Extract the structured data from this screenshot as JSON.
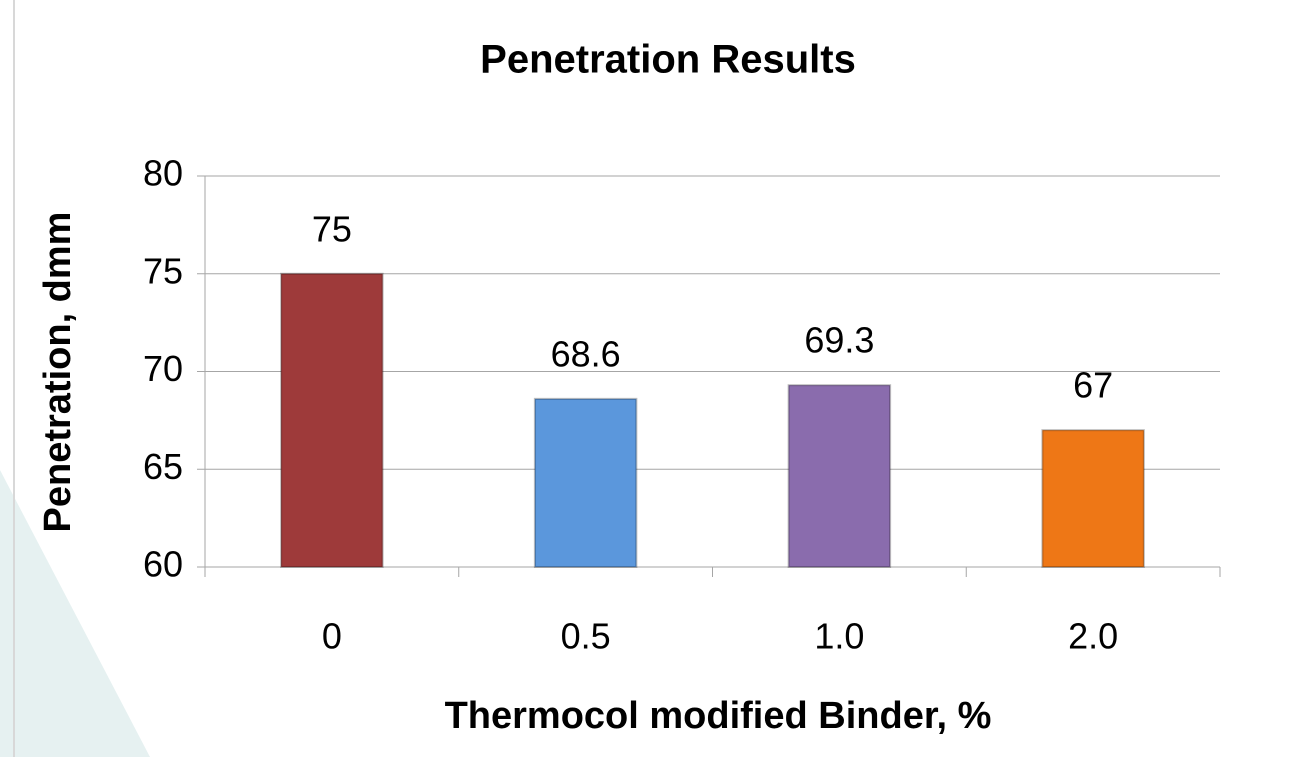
{
  "chart_data": {
    "type": "bar",
    "title": "Penetration Results",
    "x_label": "Thermocol modified Binder, %",
    "y_label": "Penetration, dmm",
    "categories": [
      "0",
      "0.5",
      "1.0",
      "2.0"
    ],
    "values": [
      75,
      68.6,
      69.3,
      67
    ],
    "colors": [
      "#9e3a3a",
      "#5b97dc",
      "#8a6cad",
      "#ee7716"
    ],
    "ylim": [
      60,
      80
    ],
    "yticks": [
      60,
      65,
      70,
      75,
      80
    ],
    "grid": true
  }
}
